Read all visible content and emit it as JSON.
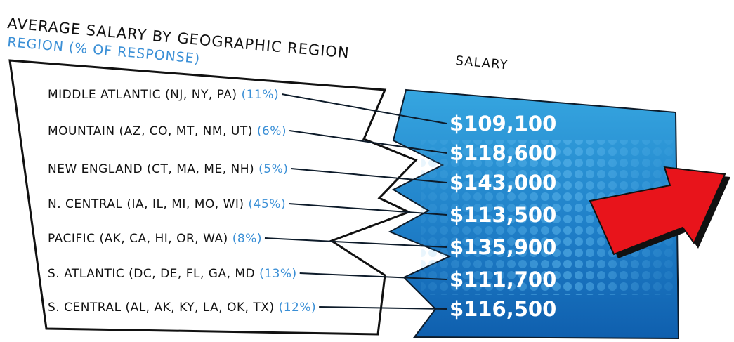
{
  "header": {
    "title": "AVERAGE SALARY BY GEOGRAPHIC REGION",
    "subtitle": "REGION (% OF RESPONSE)",
    "column": "SALARY"
  },
  "rows": [
    {
      "region": "MIDDLE ATLANTIC (NJ, NY, PA)",
      "share": "(11%)",
      "salary": "$109,100"
    },
    {
      "region": "MOUNTAIN (AZ, CO, MT, NM, UT)",
      "share": "(6%)",
      "salary": "$118,600"
    },
    {
      "region": "NEW ENGLAND (CT, MA, ME, NH)",
      "share": "(5%)",
      "salary": "$143,000"
    },
    {
      "region": "N. CENTRAL (IA, IL, MI, MO, WI)",
      "share": "(45%)",
      "salary": "$113,500"
    },
    {
      "region": "PACIFIC (AK, CA, HI, OR, WA)",
      "share": "(8%)",
      "salary": "$135,900"
    },
    {
      "region": "S. ATLANTIC (DC, DE, FL, GA, MD",
      "share": "(13%)",
      "salary": "$111,700"
    },
    {
      "region": "S. CENTRAL (AL, AK, KY, LA, OK, TX)",
      "share": "(12%)",
      "salary": "$116,500"
    }
  ]
}
